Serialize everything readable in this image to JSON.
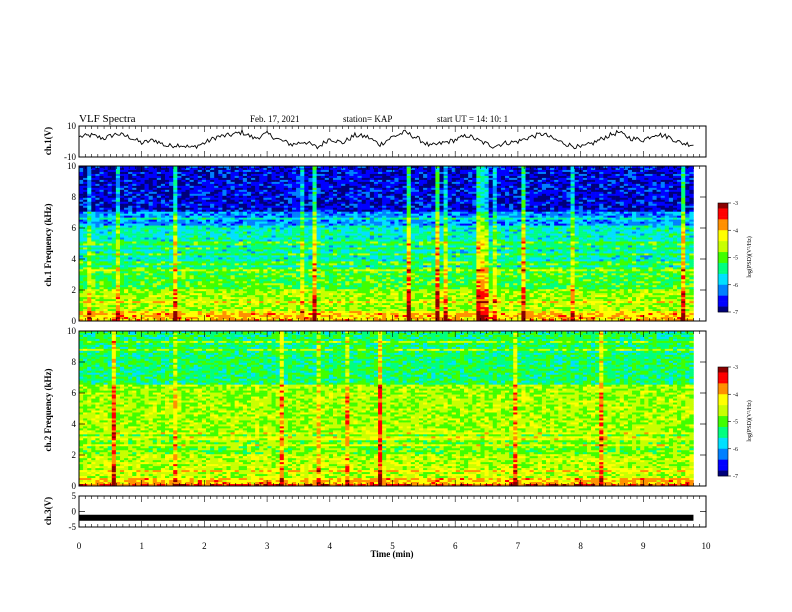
{
  "header": {
    "title": "VLF Spectra",
    "date": "Feb. 17, 2021",
    "station": "station= KAP",
    "start": "start  UT  =   14: 10: 1"
  },
  "colors": {
    "scale": [
      "#00007a",
      "#0000ff",
      "#0080ff",
      "#00e0ff",
      "#00ff80",
      "#40ff00",
      "#c8ff00",
      "#ffff00",
      "#ff9000",
      "#ff0000",
      "#8a0000"
    ]
  },
  "chart_data": [
    {
      "type": "line",
      "panel": "ch1-waveform",
      "ylabel": "ch.1(V)",
      "ylim": [
        -10,
        10
      ],
      "yticks": [
        "10",
        "-10"
      ],
      "xlim": [
        0,
        10
      ],
      "series": [
        {
          "x": [
            0,
            0.2,
            0.4,
            0.6,
            0.8,
            1.0,
            1.2,
            1.4,
            1.6,
            1.8,
            2.0,
            2.2,
            2.4,
            2.6,
            2.8,
            3.0,
            3.2,
            3.4,
            3.6,
            3.8,
            4.0,
            4.2,
            4.4,
            4.6,
            4.8,
            5.0,
            5.2,
            5.4,
            5.6,
            5.8,
            6.0,
            6.2,
            6.4,
            6.6,
            6.8,
            7.0,
            7.2,
            7.4,
            7.6,
            7.8,
            8.0,
            8.2,
            8.4,
            8.6,
            8.8,
            9.0,
            9.2,
            9.4,
            9.6,
            9.8
          ],
          "y": [
            3,
            4,
            2,
            5,
            3,
            -1,
            1,
            -3,
            -2,
            -4,
            -1,
            3,
            4,
            6,
            2,
            5,
            1,
            -2,
            0,
            -4,
            2,
            -1,
            4,
            3,
            -2,
            3,
            6,
            2,
            -3,
            -1,
            1,
            4,
            0,
            -3,
            -1,
            0,
            3,
            5,
            1,
            -2,
            -4,
            -1,
            3,
            6,
            2,
            1,
            5,
            3,
            -1,
            -2
          ]
        }
      ]
    },
    {
      "type": "heatmap",
      "panel": "ch1-spectrogram",
      "ylabel": "ch.1 Frequency (kHz)",
      "ylim": [
        0,
        10
      ],
      "yticks": [
        "0",
        "2",
        "4",
        "6",
        "8",
        "10"
      ],
      "xlim": [
        0,
        10
      ],
      "colorbar": {
        "label": "log(PSD)(V²/Hz)",
        "range": [
          -7,
          -3
        ],
        "ticks": [
          "-3",
          "-4",
          "-5",
          "-6",
          "-7"
        ]
      },
      "bands": [
        {
          "f": [
            0,
            0.5
          ],
          "level": -4
        },
        {
          "f": [
            0.5,
            2.0
          ],
          "level": -4.7
        },
        {
          "f": [
            2.0,
            3.5
          ],
          "level": -5.1
        },
        {
          "f": [
            3.5,
            6.0
          ],
          "level": -5.6
        },
        {
          "f": [
            6.0,
            7.0
          ],
          "level": -6.1
        },
        {
          "f": [
            7.0,
            10.0
          ],
          "level": -6.7
        }
      ]
    },
    {
      "type": "heatmap",
      "panel": "ch2-spectrogram",
      "ylabel": "ch.2 Frequency (kHz)",
      "ylim": [
        0,
        10
      ],
      "yticks": [
        "0",
        "2",
        "4",
        "6",
        "8",
        "10"
      ],
      "xlim": [
        0,
        10
      ],
      "colorbar": {
        "label": "log(PSD)(V²/Hz)",
        "range": [
          -7,
          -3
        ],
        "ticks": [
          "-3",
          "-4",
          "-5",
          "-6",
          "-7"
        ]
      },
      "bands": [
        {
          "f": [
            0,
            0.5
          ],
          "level": -4
        },
        {
          "f": [
            0.5,
            2.0
          ],
          "level": -4.6
        },
        {
          "f": [
            2.0,
            3.5
          ],
          "level": -4.9
        },
        {
          "f": [
            3.5,
            6.5
          ],
          "level": -4.7
        },
        {
          "f": [
            6.5,
            10.0
          ],
          "level": -5.3
        }
      ]
    },
    {
      "type": "line",
      "panel": "ch3-waveform",
      "ylabel": "ch.3(V)",
      "ylim": [
        -5,
        5
      ],
      "yticks": [
        "5",
        "0",
        "-5"
      ],
      "xlim": [
        0,
        10
      ],
      "xlabel": "Time (min)",
      "xticks": [
        "0",
        "1",
        "2",
        "3",
        "4",
        "5",
        "6",
        "7",
        "8",
        "9",
        "10"
      ],
      "series": [
        {
          "x": [
            0,
            9.8
          ],
          "y": [
            -2,
            -2
          ]
        }
      ]
    }
  ]
}
